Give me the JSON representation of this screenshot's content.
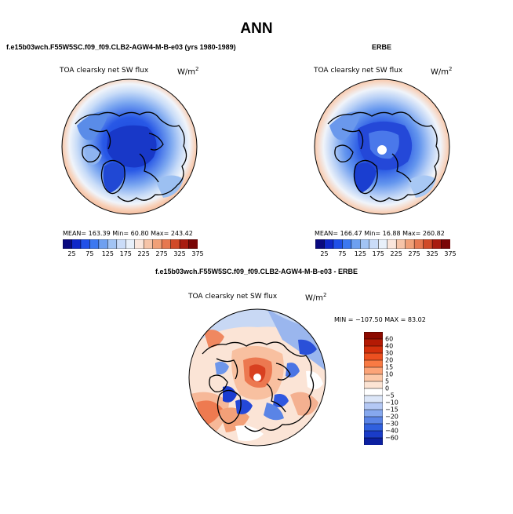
{
  "title": "ANN",
  "panels": [
    {
      "id": "model",
      "subtitle": "f.e15b03wch.F55W5SC.f09_f09.CLB2-AGW4-M-B-e03 (yrs 1980-1989)",
      "field": "TOA clearsky net SW flux",
      "units": "W/m",
      "units_sup": "2",
      "stats": "MEAN= 163.39   Min= 60.80   Max= 243.42"
    },
    {
      "id": "obs",
      "subtitle": "ERBE",
      "field": "TOA clearsky net SW flux",
      "units": "W/m",
      "units_sup": "2",
      "stats": "MEAN= 166.47   Min= 16.88   Max= 260.82"
    },
    {
      "id": "diff",
      "subtitle": "f.e15b03wch.F55W5SC.f09_f09.CLB2-AGW4-M-B-e03 - ERBE",
      "field": "TOA clearsky net SW flux",
      "units": "W/m",
      "units_sup": "2",
      "stats": "MIN = −107.50  MAX =  83.02"
    }
  ],
  "colorbar_abs": {
    "labels": [
      "25",
      "75",
      "125",
      "175",
      "225",
      "275",
      "325",
      "375"
    ],
    "colors": [
      "#0a0a80",
      "#1028c8",
      "#2050e8",
      "#3c78f0",
      "#6ea0f0",
      "#a2c4f4",
      "#cadcf8",
      "#e8f0fa",
      "#fae6dc",
      "#f6c4a8",
      "#f0a078",
      "#e67850",
      "#d04a28",
      "#a81c10",
      "#7a0606"
    ]
  },
  "colorbar_diff": {
    "labels": [
      "60",
      "40",
      "30",
      "20",
      "15",
      "10",
      "5",
      "0",
      "−5",
      "−10",
      "−15",
      "−20",
      "−30",
      "−40",
      "−60"
    ],
    "colors": [
      "#8c0a00",
      "#b41a04",
      "#d4300c",
      "#ec5020",
      "#f87a44",
      "#fca478",
      "#fcc8a8",
      "#fce4d4",
      "#ffffff",
      "#dce6f8",
      "#b4c8f4",
      "#86a8ee",
      "#5a84e6",
      "#3060de",
      "#1a3cc8",
      "#0c20a0"
    ]
  }
}
